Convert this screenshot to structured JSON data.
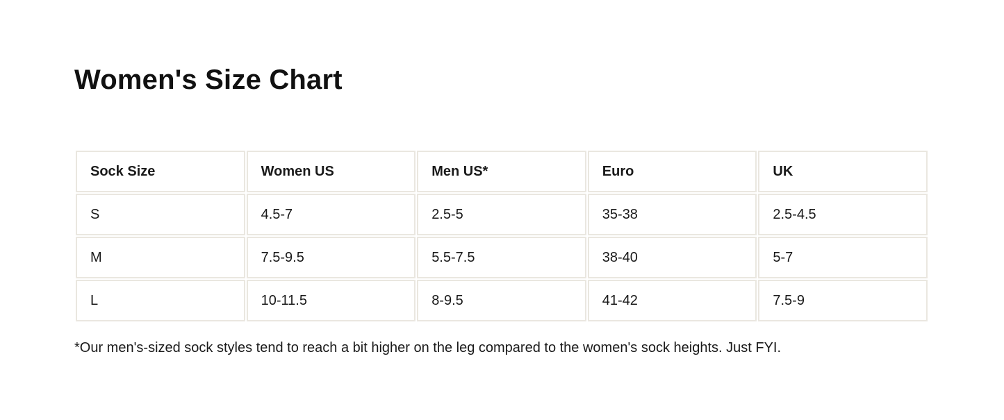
{
  "page": {
    "title": "Women's Size Chart",
    "footnote": "*Our men's-sized sock styles tend to reach a bit higher on the leg compared to the women's sock heights. Just FYI."
  },
  "size_chart": {
    "columns": [
      "Sock Size",
      "Women US",
      "Men US*",
      "Euro",
      "UK"
    ],
    "rows": [
      {
        "size": "S",
        "women_us": "4.5-7",
        "men_us": "2.5-5",
        "euro": "35-38",
        "uk": "2.5-4.5"
      },
      {
        "size": "M",
        "women_us": "7.5-9.5",
        "men_us": "5.5-7.5",
        "euro": "38-40",
        "uk": "5-7"
      },
      {
        "size": "L",
        "women_us": "10-11.5",
        "men_us": "8-9.5",
        "euro": "41-42",
        "uk": "7.5-9"
      }
    ]
  },
  "colors": {
    "background": "#FFFFFF",
    "cell_border": "#EAE7E0",
    "text": "#1A1A1A"
  }
}
